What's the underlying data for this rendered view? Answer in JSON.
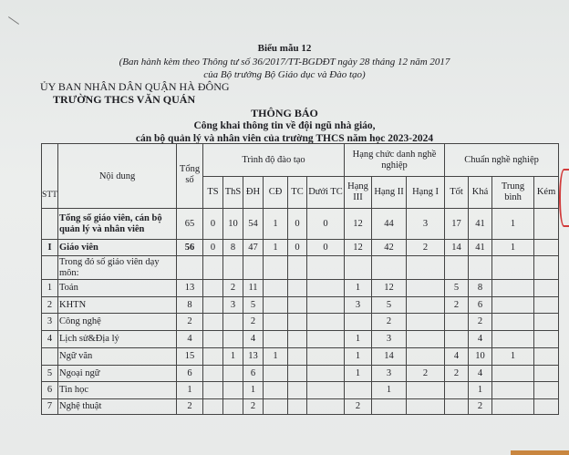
{
  "form_label": "Biểu mẫu 12",
  "issued_line1": "(Ban hành kèm theo Thông tư số 36/2017/TT-BGDĐT ngày 28 tháng 12 năm 2017",
  "issued_line2": "của Bộ trưởng Bộ Giáo dục và Đào tạo)",
  "authority": "ỦY BAN NHÂN DÂN QUẬN HÀ ĐÔNG",
  "school": "TRƯỜNG THCS VĂN QUÁN",
  "title": "THÔNG BÁO",
  "subtitle1": "Công khai thông tin về đội ngũ nhà giáo,",
  "subtitle2": "cán bộ quản lý và nhân viên của trường THCS năm học 2023-2024",
  "table": {
    "h_stt": "STT",
    "h_content": "Nội dung",
    "h_total": "Tổng số",
    "g_training": "Trình độ đào tạo",
    "g_rank": "Hạng chức danh nghề nghiệp",
    "g_standard": "Chuẩn nghề nghiệp",
    "sub": [
      "TS",
      "ThS",
      "ĐH",
      "CĐ",
      "TC",
      "Dưới TC",
      "Hạng III",
      "Hạng II",
      "Hạng I",
      "Tốt",
      "Khá",
      "Trung bình",
      "Kém"
    ],
    "rows": [
      {
        "stt": "",
        "name": "Tổng số giáo viên, cán bộ quản lý và nhân viên",
        "bold": true,
        "v": [
          "65",
          "0",
          "10",
          "54",
          "1",
          "0",
          "0",
          "12",
          "44",
          "3",
          "17",
          "41",
          "1",
          ""
        ]
      },
      {
        "stt": "I",
        "name": "Giáo viên",
        "bold": true,
        "v": [
          "56",
          "0",
          "8",
          "47",
          "1",
          "0",
          "0",
          "12",
          "42",
          "2",
          "14",
          "41",
          "1",
          ""
        ]
      },
      {
        "stt": "",
        "name": "Trong đó số giáo viên dạy môn:",
        "bold": false,
        "v": [
          "",
          "",
          "",
          "",
          "",
          "",
          "",
          "",
          "",
          "",
          "",
          "",
          "",
          ""
        ]
      },
      {
        "stt": "1",
        "name": "Toán",
        "bold": false,
        "v": [
          "13",
          "",
          "2",
          "11",
          "",
          "",
          "",
          "1",
          "12",
          "",
          "5",
          "8",
          "",
          ""
        ]
      },
      {
        "stt": "2",
        "name": "KHTN",
        "bold": false,
        "v": [
          "8",
          "",
          "3",
          "5",
          "",
          "",
          "",
          "3",
          "5",
          "",
          "2",
          "6",
          "",
          ""
        ]
      },
      {
        "stt": "3",
        "name": "Công nghệ",
        "bold": false,
        "v": [
          "2",
          "",
          "",
          "2",
          "",
          "",
          "",
          "",
          "2",
          "",
          "",
          "2",
          "",
          ""
        ]
      },
      {
        "stt": "4",
        "name": "Lịch sử&Địa lý",
        "bold": false,
        "v": [
          "4",
          "",
          "",
          "4",
          "",
          "",
          "",
          "1",
          "3",
          "",
          "",
          "4",
          "",
          ""
        ]
      },
      {
        "stt": "",
        "name": "Ngữ văn",
        "bold": false,
        "v": [
          "15",
          "",
          "1",
          "13",
          "1",
          "",
          "",
          "1",
          "14",
          "",
          "4",
          "10",
          "1",
          ""
        ]
      },
      {
        "stt": "5",
        "name": "Ngoại ngữ",
        "bold": false,
        "v": [
          "6",
          "",
          "",
          "6",
          "",
          "",
          "",
          "1",
          "3",
          "2",
          "2",
          "4",
          "",
          ""
        ]
      },
      {
        "stt": "6",
        "name": "Tin học",
        "bold": false,
        "v": [
          "1",
          "",
          "",
          "1",
          "",
          "",
          "",
          "",
          "1",
          "",
          "",
          "1",
          "",
          ""
        ]
      },
      {
        "stt": "7",
        "name": "Nghệ thuật",
        "bold": false,
        "v": [
          "2",
          "",
          "",
          "2",
          "",
          "",
          "",
          "2",
          "",
          "",
          "",
          "2",
          "",
          ""
        ]
      }
    ]
  }
}
